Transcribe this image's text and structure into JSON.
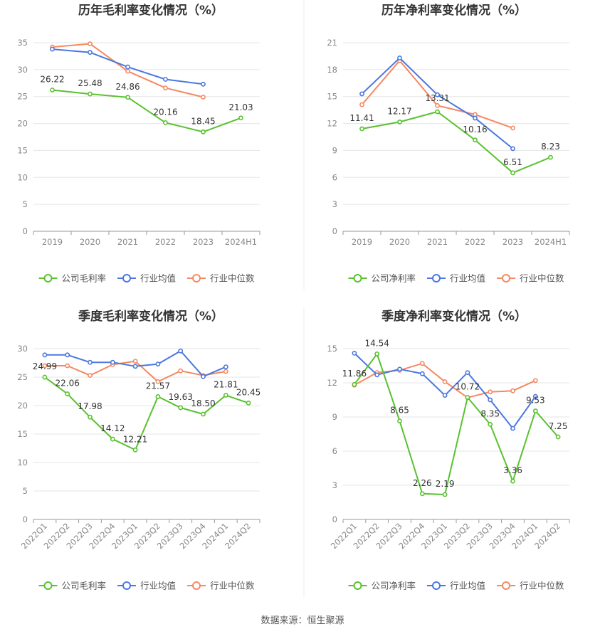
{
  "colors": {
    "company": "#58c22e",
    "industry_avg": "#4a78e0",
    "industry_median": "#f48a62",
    "grid": "#e6e6e6",
    "divider": "#eeeeee"
  },
  "footer": {
    "source": "数据来源：恒生聚源"
  },
  "chart_data": [
    {
      "id": "annual-gross",
      "type": "line",
      "title": "历年毛利率变化情况（%）",
      "categories": [
        "2019",
        "2020",
        "2021",
        "2022",
        "2023",
        "2024H1"
      ],
      "ylim": [
        0,
        35
      ],
      "yticks": [
        0,
        5,
        10,
        15,
        20,
        25,
        30,
        35
      ],
      "rotate_x": false,
      "grid": true,
      "legend_position": "bottom",
      "series": [
        {
          "key": "company",
          "name": "公司毛利率",
          "values": [
            26.22,
            25.48,
            24.86,
            20.16,
            18.45,
            21.03
          ],
          "labels": [
            "26.22",
            "25.48",
            "24.86",
            "20.16",
            "18.45",
            "21.03"
          ]
        },
        {
          "key": "industry_avg",
          "name": "行业均值",
          "values": [
            33.8,
            33.2,
            30.5,
            28.2,
            27.3,
            null
          ]
        },
        {
          "key": "industry_median",
          "name": "行业中位数",
          "values": [
            34.2,
            34.8,
            29.7,
            26.6,
            24.9,
            null
          ]
        }
      ]
    },
    {
      "id": "annual-net",
      "type": "line",
      "title": "历年净利率变化情况（%）",
      "categories": [
        "2019",
        "2020",
        "2021",
        "2022",
        "2023",
        "2024H1"
      ],
      "ylim": [
        0,
        21
      ],
      "yticks": [
        0,
        3,
        6,
        9,
        12,
        15,
        18,
        21
      ],
      "rotate_x": false,
      "grid": true,
      "legend_position": "bottom",
      "series": [
        {
          "key": "company",
          "name": "公司净利率",
          "values": [
            11.41,
            12.17,
            13.31,
            10.16,
            6.51,
            8.23
          ],
          "labels": [
            "11.41",
            "12.17",
            "13.31",
            "10.16",
            "6.51",
            "8.23"
          ]
        },
        {
          "key": "industry_avg",
          "name": "行业均值",
          "values": [
            15.3,
            19.3,
            15.2,
            12.6,
            9.2,
            null
          ]
        },
        {
          "key": "industry_median",
          "name": "行业中位数",
          "values": [
            14.1,
            19.0,
            14.0,
            13.0,
            11.5,
            null
          ]
        }
      ]
    },
    {
      "id": "quarterly-gross",
      "type": "line",
      "title": "季度毛利率变化情况（%）",
      "categories": [
        "2022Q1",
        "2022Q2",
        "2022Q3",
        "2022Q4",
        "2023Q1",
        "2023Q2",
        "2023Q3",
        "2023Q4",
        "2024Q1",
        "2024Q2"
      ],
      "ylim": [
        0,
        30
      ],
      "yticks": [
        0,
        5,
        10,
        15,
        20,
        25,
        30
      ],
      "rotate_x": true,
      "grid": true,
      "legend_position": "bottom",
      "series": [
        {
          "key": "company",
          "name": "公司毛利率",
          "values": [
            24.99,
            22.06,
            17.98,
            14.12,
            12.21,
            21.57,
            19.63,
            18.5,
            21.81,
            20.45
          ],
          "labels": [
            "24.99",
            "22.06",
            "17.98",
            "14.12",
            "12.21",
            "21.57",
            "19.63",
            "18.50",
            "21.81",
            "20.45"
          ]
        },
        {
          "key": "industry_avg",
          "name": "行业均值",
          "values": [
            28.9,
            28.9,
            27.6,
            27.6,
            26.9,
            27.3,
            29.6,
            25.1,
            26.8,
            null
          ]
        },
        {
          "key": "industry_median",
          "name": "行业中位数",
          "values": [
            27.0,
            27.0,
            25.3,
            27.2,
            27.8,
            24.2,
            26.1,
            25.3,
            26.0,
            null
          ]
        }
      ]
    },
    {
      "id": "quarterly-net",
      "type": "line",
      "title": "季度净利率变化情况（%）",
      "categories": [
        "2022Q1",
        "2022Q2",
        "2022Q3",
        "2022Q4",
        "2023Q1",
        "2023Q2",
        "2023Q3",
        "2023Q4",
        "2024Q1",
        "2024Q2"
      ],
      "ylim": [
        0,
        15
      ],
      "yticks": [
        0,
        3,
        6,
        9,
        12,
        15
      ],
      "rotate_x": true,
      "grid": true,
      "legend_position": "bottom",
      "series": [
        {
          "key": "company",
          "name": "公司净利率",
          "values": [
            11.86,
            14.54,
            8.65,
            2.26,
            2.19,
            10.72,
            8.35,
            3.36,
            9.53,
            7.25
          ],
          "labels": [
            "11.86",
            "14.54",
            "8.65",
            "2.26",
            "2.19",
            "10.72",
            "8.35",
            "3.36",
            "9.53",
            "7.25"
          ]
        },
        {
          "key": "industry_avg",
          "name": "行业均值",
          "values": [
            14.6,
            12.7,
            13.2,
            12.8,
            10.9,
            12.9,
            10.5,
            8.0,
            10.8,
            null
          ]
        },
        {
          "key": "industry_median",
          "name": "行业中位数",
          "values": [
            11.8,
            12.9,
            13.1,
            13.7,
            12.1,
            10.7,
            11.2,
            11.3,
            12.2,
            null
          ]
        }
      ]
    }
  ]
}
